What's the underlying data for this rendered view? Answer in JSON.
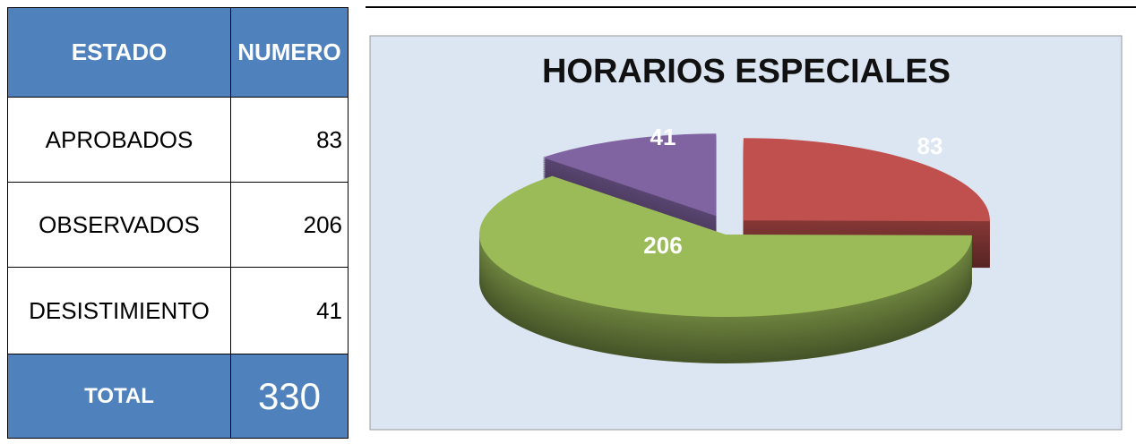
{
  "table": {
    "header": [
      "ESTADO",
      "NUMERO"
    ],
    "rows": [
      [
        "APROBADOS",
        "83"
      ],
      [
        "OBSERVADOS",
        "206"
      ],
      [
        "DESISTIMIENTO",
        "41"
      ]
    ],
    "total": [
      "TOTAL",
      "330"
    ]
  },
  "chart_data": {
    "type": "pie",
    "title": "HORARIOS ESPECIALES",
    "values": [
      83,
      206,
      41
    ],
    "colors": [
      "#c0504d",
      "#9bbb59",
      "#8064a2"
    ]
  }
}
